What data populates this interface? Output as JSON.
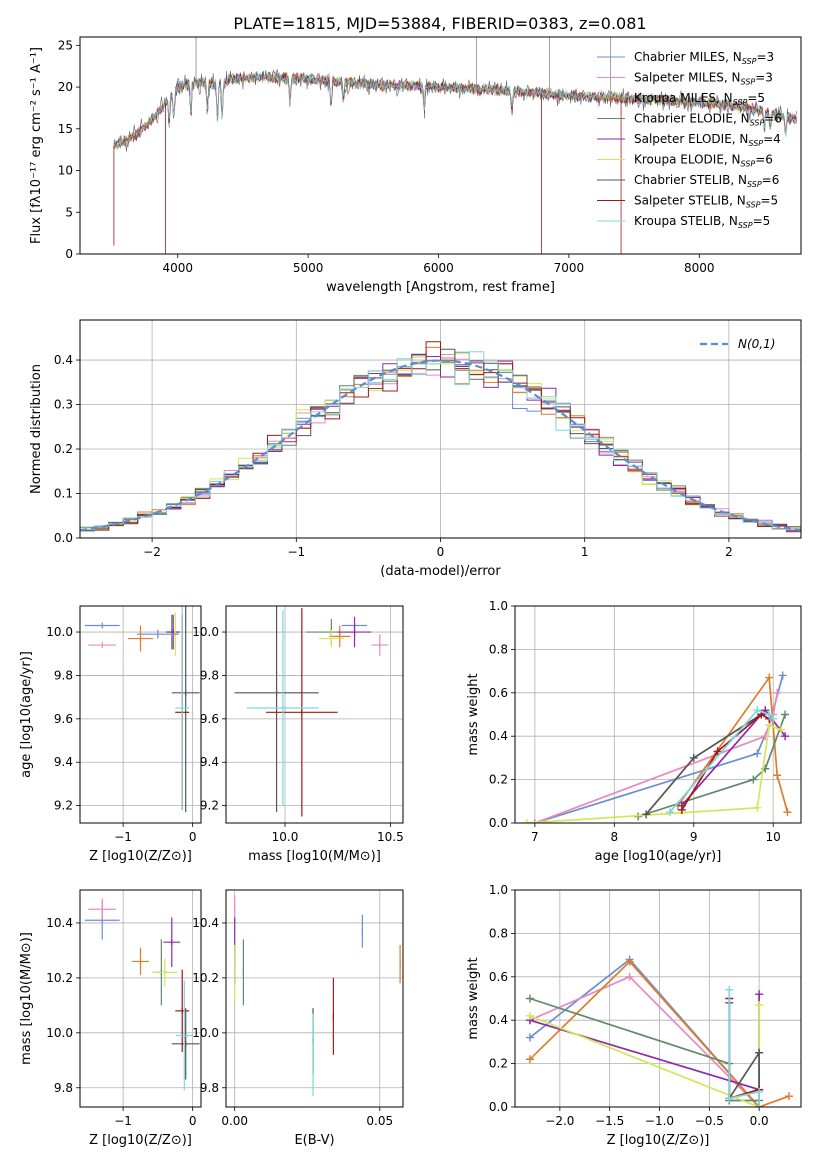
{
  "title": "PLATE=1815, MJD=53884, FIBERID=0383, z=0.081",
  "colors": {
    "c0": "#6a8fd0",
    "c1": "#e989c0",
    "c2": "#e07b2a",
    "c3": "#5e8a68",
    "c4": "#8e2aa8",
    "c5": "#d2e65a",
    "c6": "#555555",
    "c7": "#a31818",
    "c8": "#7ed6e0"
  },
  "chart_data": [
    {
      "id": "spectrum",
      "type": "line",
      "title": "PLATE=1815, MJD=53884, FIBERID=0383, z=0.081",
      "xlabel": "wavelength [Angstrom, rest frame]",
      "ylabel": "Flux [fλ10⁻¹⁷ erg cm⁻² s⁻¹ A⁻¹]",
      "xlim": [
        3250,
        8780
      ],
      "ylim": [
        0,
        26
      ],
      "xticks": [
        4000,
        5000,
        6000,
        7000,
        8000
      ],
      "yticks": [
        0,
        5,
        10,
        15,
        20,
        25
      ],
      "grid": false,
      "legend": "top-right",
      "legend_entries": [
        {
          "label": "Chabrier MILES, N",
          "sub": "SSP",
          "tail": "=3"
        },
        {
          "label": "Salpeter MILES, N",
          "sub": "SSP",
          "tail": "=3"
        },
        {
          "label": "Kroupa MILES, N",
          "sub": "SSP",
          "tail": "=5"
        },
        {
          "label": "Chabrier ELODIE, N",
          "sub": "SSP",
          "tail": "=6"
        },
        {
          "label": "Salpeter ELODIE, N",
          "sub": "SSP",
          "tail": "=4"
        },
        {
          "label": "Kroupa ELODIE, N",
          "sub": "SSP",
          "tail": "=6"
        },
        {
          "label": "Chabrier STELIB, N",
          "sub": "SSP",
          "tail": "=6"
        },
        {
          "label": "Salpeter STELIB, N",
          "sub": "SSP",
          "tail": "=5"
        },
        {
          "label": "Kroupa STELIB, N",
          "sub": "SSP",
          "tail": "=5"
        }
      ],
      "continuum": [
        [
          3500,
          13
        ],
        [
          3600,
          13.5
        ],
        [
          3700,
          14.5
        ],
        [
          3800,
          16
        ],
        [
          3900,
          18
        ],
        [
          4000,
          20
        ],
        [
          4100,
          20.5
        ],
        [
          4200,
          20.5
        ],
        [
          4300,
          20.2
        ],
        [
          4400,
          21
        ],
        [
          4600,
          21.2
        ],
        [
          5000,
          21
        ],
        [
          5500,
          20.3
        ],
        [
          6000,
          20
        ],
        [
          6500,
          19.6
        ],
        [
          7000,
          19
        ],
        [
          7500,
          18.6
        ],
        [
          8000,
          18.2
        ],
        [
          8500,
          17.2
        ],
        [
          8750,
          16
        ]
      ],
      "absorption": [
        [
          3934,
          3
        ],
        [
          3969,
          3
        ],
        [
          4101,
          4
        ],
        [
          4227,
          3
        ],
        [
          4305,
          4
        ],
        [
          4340,
          4
        ],
        [
          4861,
          3
        ],
        [
          5175,
          3
        ],
        [
          5270,
          2
        ],
        [
          5890,
          3
        ],
        [
          6563,
          2.5
        ],
        [
          8498,
          2
        ],
        [
          8542,
          2
        ],
        [
          8662,
          2
        ]
      ],
      "spikes_down": [
        [
          3510,
          1
        ],
        [
          3905,
          0
        ],
        [
          6790,
          0
        ],
        [
          7400,
          0
        ]
      ],
      "spikes_up": [
        [
          4140,
          26
        ],
        [
          6290,
          26
        ],
        [
          6850,
          26
        ],
        [
          7320,
          26
        ]
      ]
    },
    {
      "id": "residuals",
      "type": "histogram",
      "xlabel": "(data-model)/error",
      "ylabel": "Normed distribution",
      "xlim": [
        -2.5,
        2.5
      ],
      "ylim": [
        0,
        0.49
      ],
      "xticks": [
        -2,
        -1,
        0,
        1,
        2
      ],
      "yticks": [
        0.0,
        0.1,
        0.2,
        0.3,
        0.4
      ],
      "grid": true,
      "legend": "top-right",
      "legend_label": "N(0,1)",
      "bin_width": 0.1
    },
    {
      "id": "age-vs-Z",
      "type": "scatter",
      "xlabel": "Z [log10(Z/Z⊙)]",
      "ylabel": "age [log10(age/yr)]",
      "xlim": [
        -1.62,
        0.12
      ],
      "ylim": [
        9.12,
        10.12
      ],
      "xticks": [
        -1,
        0
      ],
      "yticks": [
        9.2,
        9.4,
        9.6,
        9.8,
        10.0
      ],
      "grid": true,
      "points": [
        {
          "x": -1.3,
          "y": 10.03,
          "xerr": 0.25,
          "yerr": 0.0,
          "c": "c0"
        },
        {
          "x": -1.3,
          "y": 9.94,
          "xerr": 0.2,
          "yerr": 0.0,
          "c": "c1"
        },
        {
          "x": -0.75,
          "y": 9.97,
          "xerr": 0.18,
          "yerr": 0.06,
          "c": "c2"
        },
        {
          "x": -0.3,
          "y": 10.0,
          "xerr": 0.08,
          "yerr": 0.08,
          "c": "c3"
        },
        {
          "x": -0.28,
          "y": 10.0,
          "xerr": 0.1,
          "yerr": 0.08,
          "c": "c4"
        },
        {
          "x": -0.25,
          "y": 9.99,
          "xerr": 0.05,
          "yerr": 0.1,
          "c": "c5"
        },
        {
          "x": -0.1,
          "y": 9.72,
          "xerr": 0.2,
          "yerr": 0.55,
          "c": "c6"
        },
        {
          "x": -0.15,
          "y": 9.63,
          "xerr": 0.1,
          "yerr": 0.45,
          "c": "c7"
        },
        {
          "x": -0.15,
          "y": 9.65,
          "xerr": 0.1,
          "yerr": 0.47,
          "c": "c8"
        },
        {
          "x": -0.5,
          "y": 9.99,
          "xerr": 0.3,
          "yerr": 0.02,
          "c": "c0"
        }
      ]
    },
    {
      "id": "age-vs-mass",
      "type": "scatter",
      "xlabel": "mass [log10(M/M⊙)]",
      "ylabel": "",
      "xlim": [
        9.72,
        10.56
      ],
      "ylim": [
        9.12,
        10.12
      ],
      "xticks": [
        10.0,
        10.5
      ],
      "yticks": [
        9.2,
        9.4,
        9.6,
        9.8,
        10.0
      ],
      "grid": true,
      "points": [
        {
          "x": 10.33,
          "y": 10.03,
          "xerr": 0.06,
          "yerr": 0.0,
          "c": "c0"
        },
        {
          "x": 10.45,
          "y": 9.94,
          "xerr": 0.04,
          "yerr": 0.05,
          "c": "c1"
        },
        {
          "x": 10.26,
          "y": 9.98,
          "xerr": 0.05,
          "yerr": 0.05,
          "c": "c2"
        },
        {
          "x": 10.22,
          "y": 10.0,
          "xerr": 0.12,
          "yerr": 0.06,
          "c": "c3"
        },
        {
          "x": 10.33,
          "y": 10.0,
          "xerr": 0.08,
          "yerr": 0.07,
          "c": "c4"
        },
        {
          "x": 10.22,
          "y": 9.97,
          "xerr": 0.06,
          "yerr": 0.04,
          "c": "c5"
        },
        {
          "x": 9.96,
          "y": 9.72,
          "xerr": 0.2,
          "yerr": 0.55,
          "c": "c6"
        },
        {
          "x": 10.08,
          "y": 9.63,
          "xerr": 0.17,
          "yerr": 0.48,
          "c": "c7"
        },
        {
          "x": 9.99,
          "y": 9.65,
          "xerr": 0.17,
          "yerr": 0.45,
          "c": "c8"
        }
      ]
    },
    {
      "id": "mass-weight-vs-age",
      "type": "line",
      "xlabel": "age [log10(age/yr)]",
      "ylabel": "mass weight",
      "xlim": [
        6.75,
        10.35
      ],
      "ylim": [
        0,
        1
      ],
      "xticks": [
        7,
        8,
        9,
        10
      ],
      "yticks": [
        0.0,
        0.2,
        0.4,
        0.6,
        0.8,
        1.0
      ],
      "grid": true,
      "series": [
        {
          "c": "c0",
          "x": [
            7.0,
            9.8,
            9.95,
            10.12
          ],
          "y": [
            0.0,
            0.32,
            0.45,
            0.68
          ]
        },
        {
          "c": "c1",
          "x": [
            7.0,
            9.9,
            10.0,
            10.05
          ],
          "y": [
            0.0,
            0.4,
            0.5,
            0.6
          ]
        },
        {
          "c": "c2",
          "x": [
            8.8,
            9.95,
            10.05,
            10.18
          ],
          "y": [
            0.08,
            0.67,
            0.22,
            0.05
          ]
        },
        {
          "c": "c3",
          "x": [
            8.3,
            9.75,
            9.9,
            10.15
          ],
          "y": [
            0.03,
            0.2,
            0.25,
            0.5
          ]
        },
        {
          "c": "c4",
          "x": [
            8.85,
            9.85,
            9.9,
            10.15
          ],
          "y": [
            0.08,
            0.5,
            0.52,
            0.4
          ]
        },
        {
          "c": "c5",
          "x": [
            6.9,
            9.8,
            9.95,
            10.1
          ],
          "y": [
            0.0,
            0.07,
            0.45,
            0.43
          ]
        },
        {
          "c": "c6",
          "x": [
            8.4,
            9.0,
            9.85
          ],
          "y": [
            0.04,
            0.3,
            0.5
          ]
        },
        {
          "c": "c7",
          "x": [
            8.85,
            9.3,
            9.85,
            9.95
          ],
          "y": [
            0.06,
            0.33,
            0.5,
            0.48
          ]
        },
        {
          "c": "c8",
          "x": [
            8.7,
            9.8,
            9.95,
            10.0
          ],
          "y": [
            0.05,
            0.52,
            0.5,
            0.48
          ]
        }
      ]
    },
    {
      "id": "mass-vs-Z",
      "type": "scatter",
      "xlabel": "Z [log10(Z/Z⊙)]",
      "ylabel": "mass [log10(M/M⊙)]",
      "xlim": [
        -1.62,
        0.12
      ],
      "ylim": [
        9.73,
        10.52
      ],
      "xticks": [
        -1,
        0
      ],
      "yticks": [
        9.8,
        10.0,
        10.2,
        10.4
      ],
      "grid": true,
      "points": [
        {
          "x": -1.3,
          "y": 10.41,
          "xerr": 0.25,
          "yerr": 0.07,
          "c": "c0"
        },
        {
          "x": -1.3,
          "y": 10.45,
          "xerr": 0.2,
          "yerr": 0.04,
          "c": "c1"
        },
        {
          "x": -0.75,
          "y": 10.26,
          "xerr": 0.12,
          "yerr": 0.05,
          "c": "c2"
        },
        {
          "x": -0.45,
          "y": 10.22,
          "xerr": 0.1,
          "yerr": 0.12,
          "c": "c3"
        },
        {
          "x": -0.3,
          "y": 10.33,
          "xerr": 0.12,
          "yerr": 0.09,
          "c": "c4"
        },
        {
          "x": -0.4,
          "y": 10.22,
          "xerr": 0.18,
          "yerr": 0.05,
          "c": "c5"
        },
        {
          "x": -0.1,
          "y": 9.96,
          "xerr": 0.2,
          "yerr": 0.13,
          "c": "c6"
        },
        {
          "x": -0.15,
          "y": 10.08,
          "xerr": 0.1,
          "yerr": 0.15,
          "c": "c7"
        },
        {
          "x": -0.12,
          "y": 9.99,
          "xerr": 0.12,
          "yerr": 0.2,
          "c": "c8"
        }
      ]
    },
    {
      "id": "mass-vs-EBV",
      "type": "scatter",
      "xlabel": "E(B-V)",
      "ylabel": "",
      "xlim": [
        -0.003,
        0.058
      ],
      "ylim": [
        9.73,
        10.52
      ],
      "xticks": [
        0.0,
        0.05
      ],
      "yticks": [
        9.8,
        10.0,
        10.2,
        10.4
      ],
      "grid": true,
      "points": [
        {
          "x": 0.044,
          "y": 10.37,
          "xerr": 0,
          "yerr": 0.06,
          "c": "c0"
        },
        {
          "x": 0.0,
          "y": 10.45,
          "xerr": 0,
          "yerr": 0.05,
          "c": "c1"
        },
        {
          "x": 0.057,
          "y": 10.25,
          "xerr": 0,
          "yerr": 0.07,
          "c": "c2"
        },
        {
          "x": 0.003,
          "y": 10.22,
          "xerr": 0,
          "yerr": 0.12,
          "c": "c3"
        },
        {
          "x": 0.0,
          "y": 10.3,
          "xerr": 0,
          "yerr": 0.12,
          "c": "c4"
        },
        {
          "x": 0.0,
          "y": 10.22,
          "xerr": 0,
          "yerr": 0.1,
          "c": "c5"
        },
        {
          "x": 0.027,
          "y": 9.97,
          "xerr": 0,
          "yerr": 0.12,
          "c": "c6"
        },
        {
          "x": 0.034,
          "y": 10.06,
          "xerr": 0,
          "yerr": 0.14,
          "c": "c7"
        },
        {
          "x": 0.027,
          "y": 9.92,
          "xerr": 0,
          "yerr": 0.15,
          "c": "c8"
        }
      ]
    },
    {
      "id": "mass-weight-vs-Z",
      "type": "line",
      "xlabel": "Z [log10(Z/Z⊙)]",
      "ylabel": "mass weight",
      "xlim": [
        -2.45,
        0.42
      ],
      "ylim": [
        0,
        1
      ],
      "xticks": [
        -2.0,
        -1.5,
        -1.0,
        -0.5,
        0.0
      ],
      "yticks": [
        0.0,
        0.2,
        0.4,
        0.6,
        0.8,
        1.0
      ],
      "grid": true,
      "series": [
        {
          "c": "c0",
          "x": [
            -2.3,
            -1.3,
            0.0
          ],
          "y": [
            0.32,
            0.68,
            0.0
          ]
        },
        {
          "c": "c1",
          "x": [
            -2.3,
            -1.3,
            0.0
          ],
          "y": [
            0.4,
            0.6,
            0.0
          ]
        },
        {
          "c": "c2",
          "x": [
            -2.3,
            -1.3,
            0.0,
            0.3
          ],
          "y": [
            0.22,
            0.67,
            0.0,
            0.05
          ]
        },
        {
          "c": "c3",
          "x": [
            -2.3,
            -0.3,
            -0.3,
            0.0
          ],
          "y": [
            0.5,
            0.2,
            0.03,
            0.03
          ]
        },
        {
          "c": "c4",
          "x": [
            -2.3,
            0.0,
            0.0
          ],
          "y": [
            0.4,
            0.08,
            0.52
          ]
        },
        {
          "c": "c5",
          "x": [
            -2.3,
            0.0,
            0.0
          ],
          "y": [
            0.42,
            0.0,
            0.47
          ]
        },
        {
          "c": "c6",
          "x": [
            -0.3,
            -0.3,
            0.0,
            0.0
          ],
          "y": [
            0.48,
            0.04,
            0.25,
            0.0
          ]
        },
        {
          "c": "c7",
          "x": [
            -0.3,
            -0.3,
            0.0
          ],
          "y": [
            0.5,
            0.04,
            0.08
          ]
        },
        {
          "c": "c8",
          "x": [
            -0.3,
            -0.3,
            0.0,
            0.0
          ],
          "y": [
            0.54,
            0.04,
            0.07,
            0.0
          ]
        }
      ]
    }
  ]
}
